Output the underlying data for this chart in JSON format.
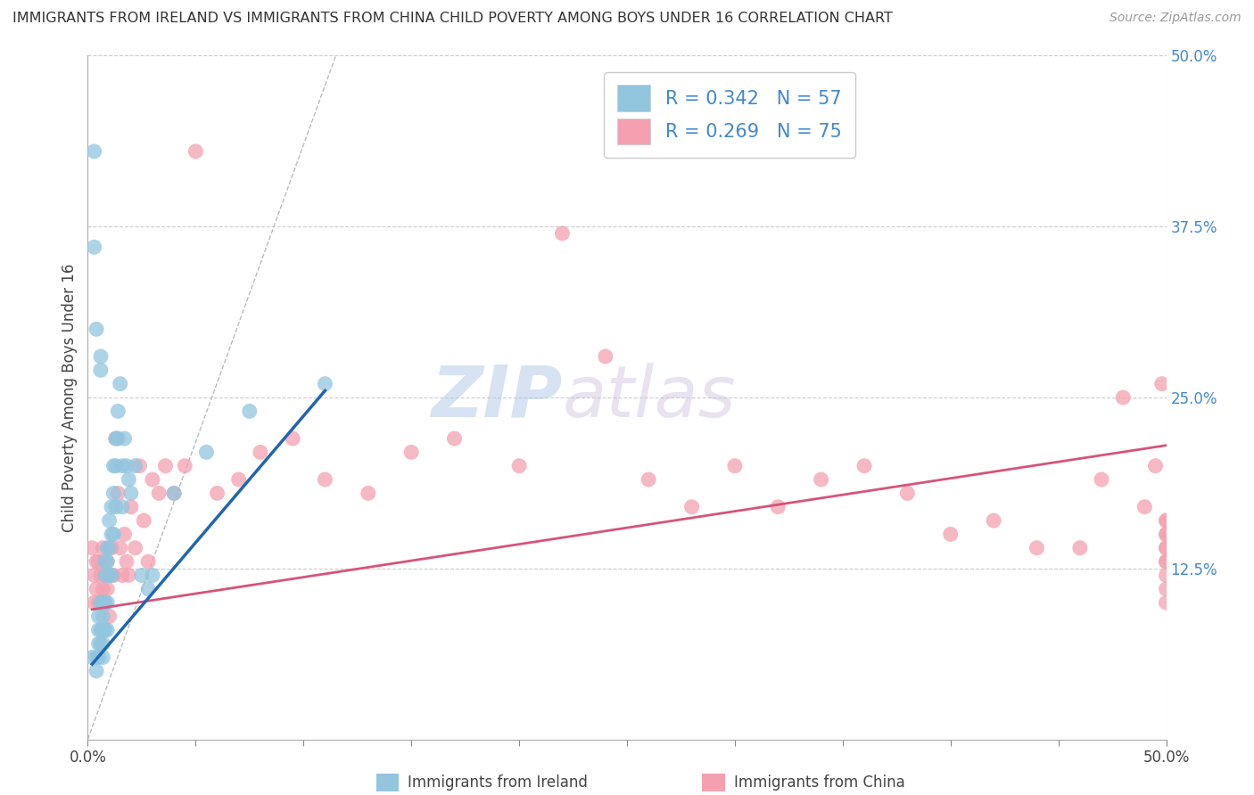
{
  "title": "IMMIGRANTS FROM IRELAND VS IMMIGRANTS FROM CHINA CHILD POVERTY AMONG BOYS UNDER 16 CORRELATION CHART",
  "source": "Source: ZipAtlas.com",
  "ylabel": "Child Poverty Among Boys Under 16",
  "xlabel_ireland": "Immigrants from Ireland",
  "xlabel_china": "Immigrants from China",
  "ireland_R": 0.342,
  "ireland_N": 57,
  "china_R": 0.269,
  "china_N": 75,
  "ireland_color": "#92c5de",
  "china_color": "#f4a0b0",
  "ireland_line_color": "#2166ac",
  "china_line_color": "#d6537a",
  "xlim": [
    0,
    0.5
  ],
  "ylim": [
    0,
    0.5
  ],
  "watermark_zip": "ZIP",
  "watermark_atlas": "atlas",
  "ireland_x": [
    0.002,
    0.003,
    0.003,
    0.004,
    0.004,
    0.004,
    0.005,
    0.005,
    0.005,
    0.005,
    0.006,
    0.006,
    0.006,
    0.006,
    0.006,
    0.007,
    0.007,
    0.007,
    0.007,
    0.007,
    0.008,
    0.008,
    0.008,
    0.008,
    0.009,
    0.009,
    0.009,
    0.009,
    0.01,
    0.01,
    0.01,
    0.011,
    0.011,
    0.011,
    0.012,
    0.012,
    0.012,
    0.013,
    0.013,
    0.013,
    0.014,
    0.014,
    0.015,
    0.016,
    0.016,
    0.017,
    0.018,
    0.019,
    0.02,
    0.022,
    0.025,
    0.028,
    0.03,
    0.04,
    0.055,
    0.075,
    0.11
  ],
  "ireland_y": [
    0.06,
    0.43,
    0.36,
    0.3,
    0.06,
    0.05,
    0.09,
    0.08,
    0.07,
    0.06,
    0.28,
    0.27,
    0.1,
    0.08,
    0.07,
    0.1,
    0.09,
    0.08,
    0.07,
    0.06,
    0.13,
    0.12,
    0.1,
    0.08,
    0.14,
    0.13,
    0.1,
    0.08,
    0.16,
    0.14,
    0.12,
    0.17,
    0.15,
    0.12,
    0.2,
    0.18,
    0.15,
    0.22,
    0.2,
    0.17,
    0.24,
    0.22,
    0.26,
    0.2,
    0.17,
    0.22,
    0.2,
    0.19,
    0.18,
    0.2,
    0.12,
    0.11,
    0.12,
    0.18,
    0.21,
    0.24,
    0.26
  ],
  "china_x": [
    0.002,
    0.003,
    0.003,
    0.004,
    0.004,
    0.005,
    0.005,
    0.006,
    0.006,
    0.007,
    0.007,
    0.008,
    0.008,
    0.009,
    0.009,
    0.01,
    0.01,
    0.011,
    0.012,
    0.013,
    0.014,
    0.015,
    0.016,
    0.017,
    0.018,
    0.019,
    0.02,
    0.022,
    0.024,
    0.026,
    0.028,
    0.03,
    0.033,
    0.036,
    0.04,
    0.045,
    0.05,
    0.06,
    0.07,
    0.08,
    0.095,
    0.11,
    0.13,
    0.15,
    0.17,
    0.2,
    0.22,
    0.24,
    0.26,
    0.28,
    0.3,
    0.32,
    0.34,
    0.36,
    0.38,
    0.4,
    0.42,
    0.44,
    0.46,
    0.47,
    0.48,
    0.49,
    0.495,
    0.498,
    0.5,
    0.5,
    0.5,
    0.5,
    0.5,
    0.5,
    0.5,
    0.5,
    0.5,
    0.5,
    0.5
  ],
  "china_y": [
    0.14,
    0.12,
    0.1,
    0.13,
    0.11,
    0.13,
    0.1,
    0.1,
    0.12,
    0.14,
    0.11,
    0.12,
    0.1,
    0.13,
    0.11,
    0.12,
    0.09,
    0.14,
    0.12,
    0.22,
    0.18,
    0.14,
    0.12,
    0.15,
    0.13,
    0.12,
    0.17,
    0.14,
    0.2,
    0.16,
    0.13,
    0.19,
    0.18,
    0.2,
    0.18,
    0.2,
    0.43,
    0.18,
    0.19,
    0.21,
    0.22,
    0.19,
    0.18,
    0.21,
    0.22,
    0.2,
    0.37,
    0.28,
    0.19,
    0.17,
    0.2,
    0.17,
    0.19,
    0.2,
    0.18,
    0.15,
    0.16,
    0.14,
    0.14,
    0.19,
    0.25,
    0.17,
    0.2,
    0.26,
    0.15,
    0.15,
    0.16,
    0.14,
    0.13,
    0.16,
    0.12,
    0.11,
    0.13,
    0.14,
    0.1
  ],
  "ireland_trend_x": [
    0.002,
    0.11
  ],
  "ireland_trend_y": [
    0.055,
    0.255
  ],
  "china_trend_x": [
    0.002,
    0.5
  ],
  "china_trend_y": [
    0.095,
    0.215
  ]
}
